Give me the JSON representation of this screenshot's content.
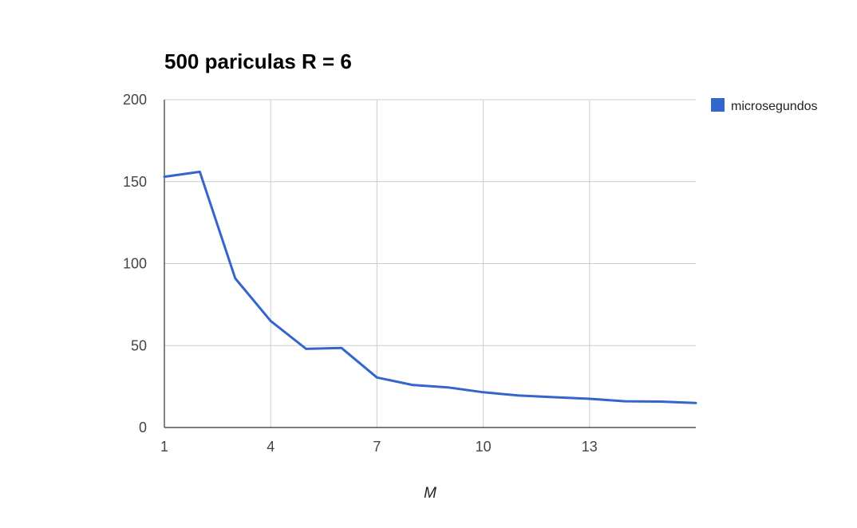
{
  "chart_data": {
    "type": "line",
    "title": "500 pariculas R = 6",
    "xlabel": "M",
    "ylabel": "",
    "x": [
      1,
      2,
      3,
      4,
      5,
      6,
      7,
      8,
      9,
      10,
      11,
      12,
      13,
      14,
      15,
      16
    ],
    "series": [
      {
        "name": "microsegundos",
        "color": "#3366cc",
        "values": [
          153,
          156,
          91,
          65,
          48,
          48.5,
          30.5,
          26,
          24.5,
          21.5,
          19.5,
          18.5,
          17.5,
          16,
          15.8,
          15
        ]
      }
    ],
    "xlim": [
      1,
      16
    ],
    "ylim": [
      0,
      200
    ],
    "x_ticks": [
      1,
      4,
      7,
      10,
      13
    ],
    "y_ticks": [
      0,
      50,
      100,
      150,
      200
    ],
    "grid": true,
    "legend_position": "right"
  }
}
